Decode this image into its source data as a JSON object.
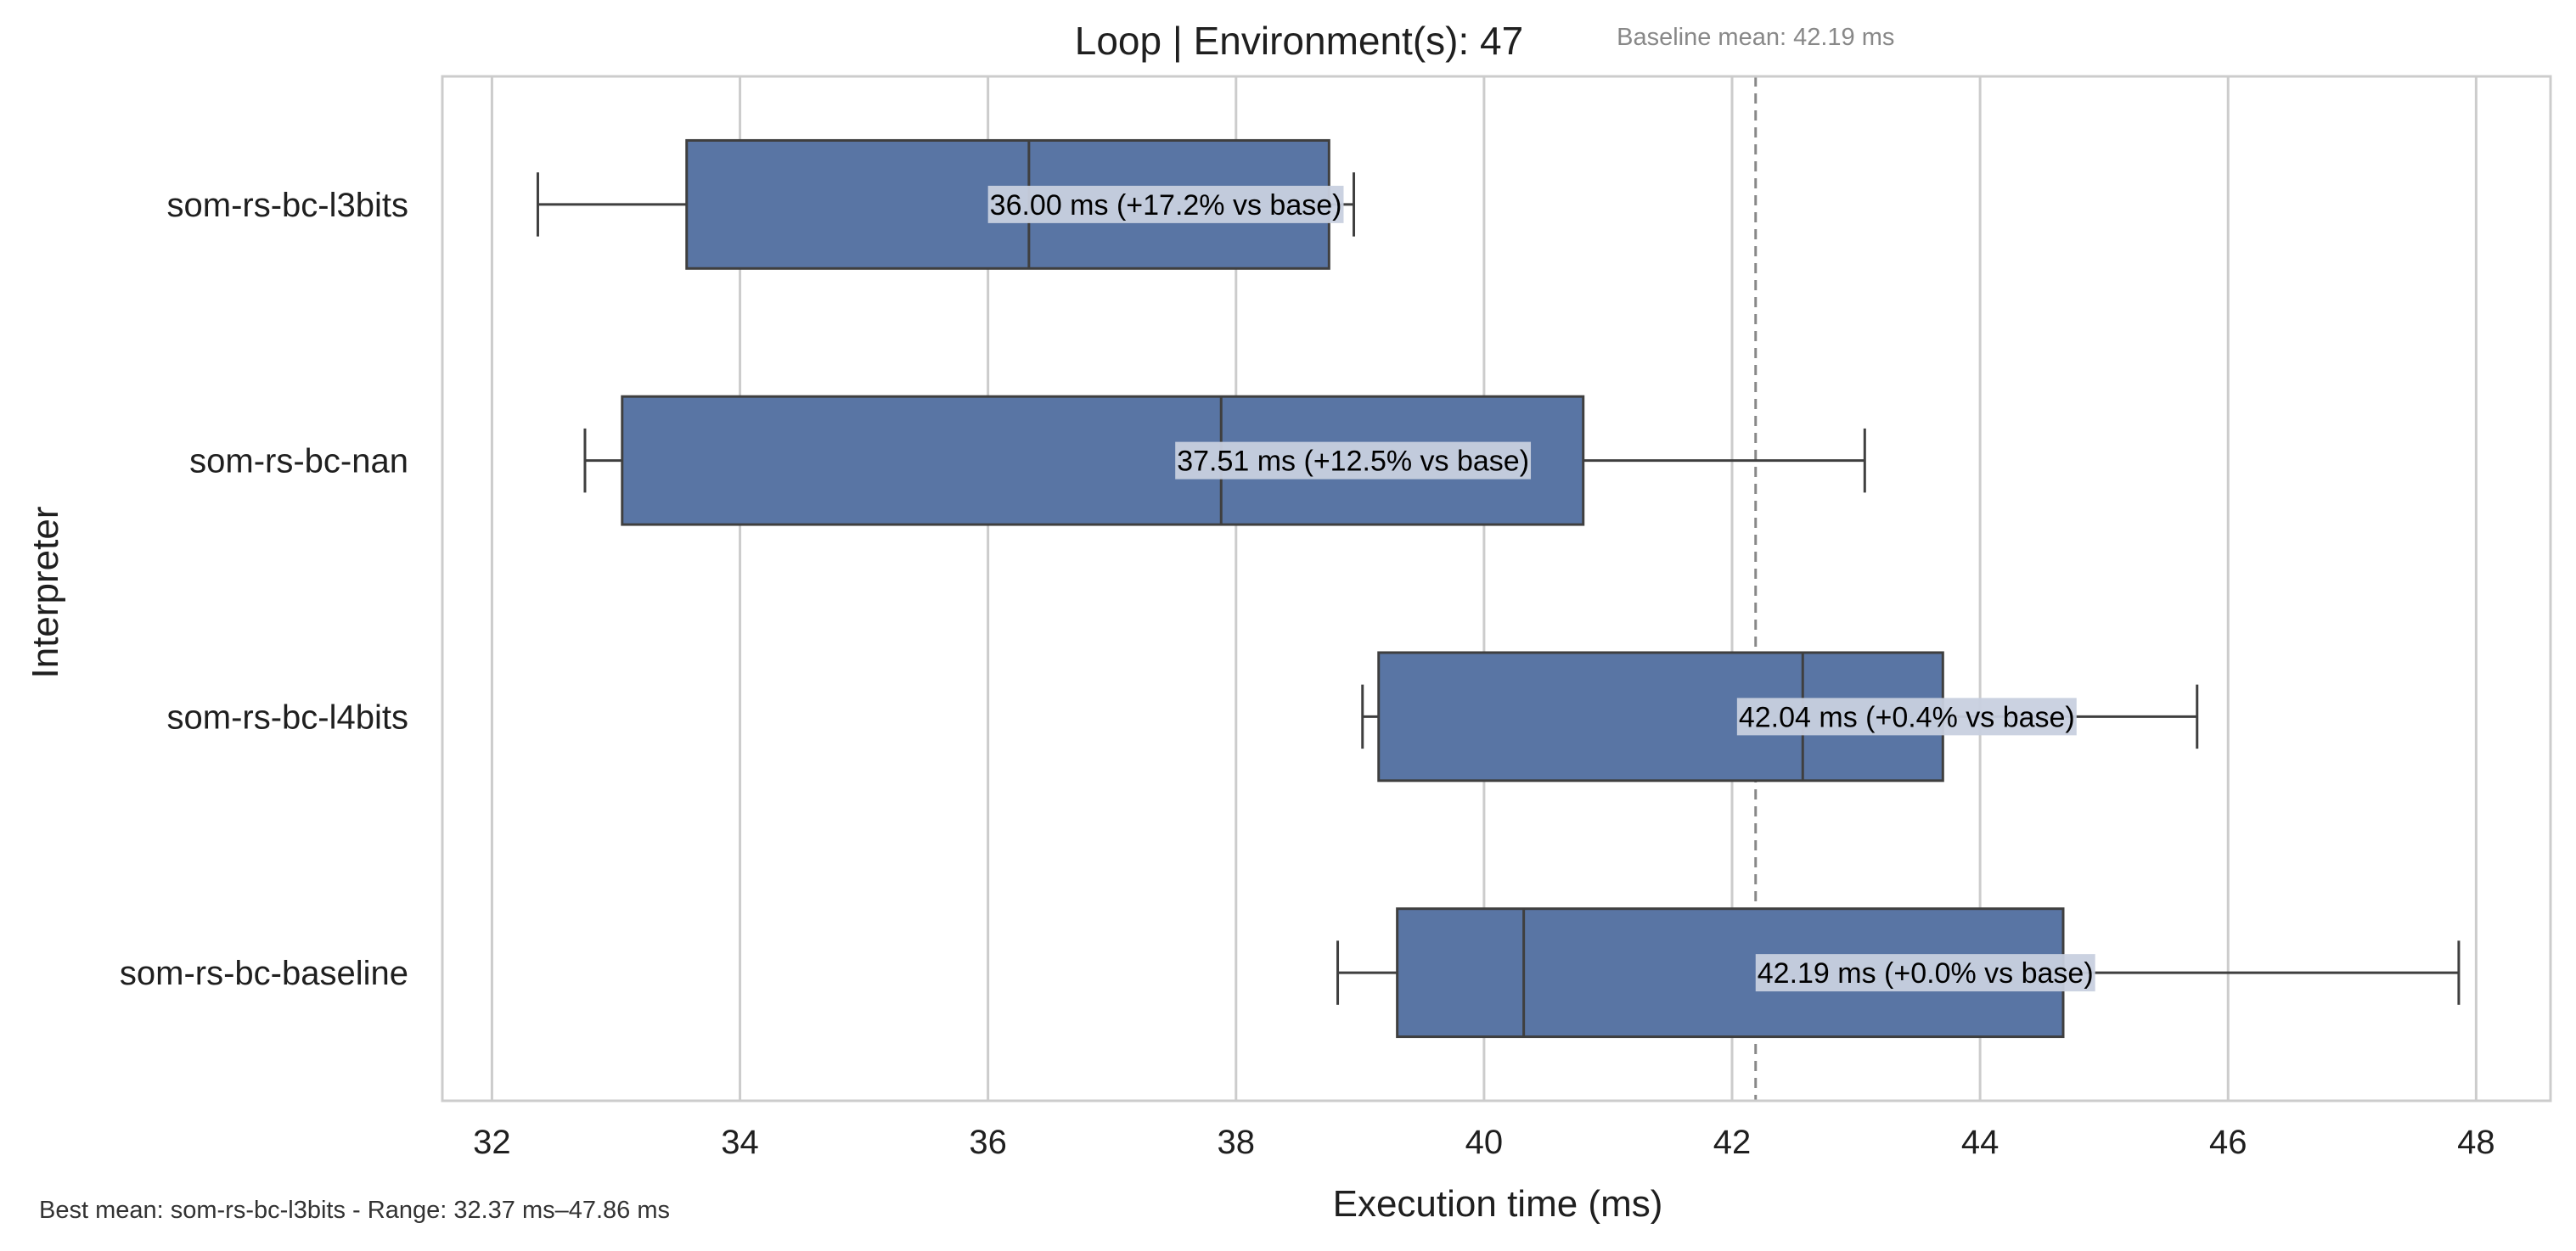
{
  "chart_data": {
    "type": "box",
    "orientation": "horizontal",
    "title": "Loop | Environment(s): 47",
    "xlabel": "Execution time (ms)",
    "ylabel": "Interpreter",
    "xlim": [
      31.6,
      48.6
    ],
    "xticks": [
      "32",
      "34",
      "36",
      "38",
      "40",
      "42",
      "44",
      "46",
      "48"
    ],
    "grid": "vertical",
    "colors": {
      "box_fill": "#5975a4",
      "box_edge": "#3f3f3f",
      "grid": "#cccccc",
      "frame": "#cccccc",
      "baseline_line": "#888888",
      "label_bg": "#c8d0df"
    },
    "baseline": {
      "value": 42.19,
      "label": "Baseline mean: 42.19 ms"
    },
    "categories": [
      "som-rs-bc-l3bits",
      "som-rs-bc-nan",
      "som-rs-bc-l4bits",
      "som-rs-bc-baseline"
    ],
    "boxes": [
      {
        "name": "som-rs-bc-l3bits",
        "whisker_low": 32.37,
        "q1": 33.57,
        "median": 36.33,
        "q3": 38.75,
        "whisker_high": 38.95,
        "mean": 36.0,
        "annotation": "36.00 ms  (+17.2% vs base)"
      },
      {
        "name": "som-rs-bc-nan",
        "whisker_low": 32.75,
        "q1": 33.05,
        "median": 37.88,
        "q3": 40.8,
        "whisker_high": 43.07,
        "mean": 37.51,
        "annotation": "37.51 ms  (+12.5% vs base)"
      },
      {
        "name": "som-rs-bc-l4bits",
        "whisker_low": 39.02,
        "q1": 39.15,
        "median": 42.57,
        "q3": 43.7,
        "whisker_high": 45.75,
        "mean": 42.04,
        "annotation": "42.04 ms  (+0.4% vs base)"
      },
      {
        "name": "som-rs-bc-baseline",
        "whisker_low": 38.82,
        "q1": 39.3,
        "median": 40.32,
        "q3": 44.67,
        "whisker_high": 47.86,
        "mean": 42.19,
        "annotation": "42.19 ms  (+0.0% vs base)"
      }
    ],
    "footnote": "Best mean: som-rs-bc-l3bits - Range: 32.37 ms–47.86 ms"
  }
}
